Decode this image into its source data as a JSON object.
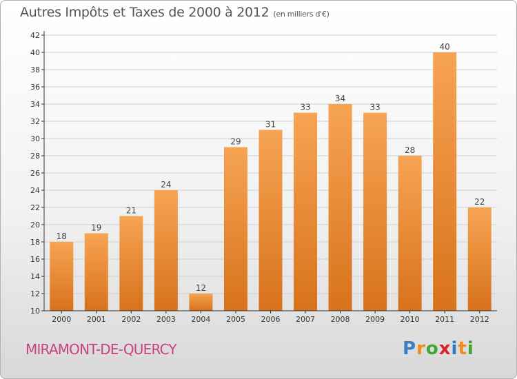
{
  "title": "Autres Impôts et Taxes de 2000 à 2012",
  "subtitle": "(en milliers d'€)",
  "commune": "MIRAMONT-DE-QUERCY",
  "logo": {
    "text": "Proxiti",
    "colors": [
      "#3b7ec4",
      "#f08a1d",
      "#3fa536",
      "#d9232e",
      "#2f7bbf",
      "#f08a1d",
      "#3fa536"
    ]
  },
  "colors": {
    "bar_light": "#f6a453",
    "bar_dark": "#d8721c",
    "grid": "#cfcfcf",
    "axis": "#333333"
  },
  "chart_data": {
    "type": "bar",
    "categories": [
      "2000",
      "2001",
      "2002",
      "2003",
      "2004",
      "2005",
      "2006",
      "2007",
      "2008",
      "2009",
      "2010",
      "2011",
      "2012"
    ],
    "values": [
      18,
      19,
      21,
      24,
      12,
      29,
      31,
      33,
      34,
      33,
      28,
      40,
      22
    ],
    "ylim": [
      10,
      42
    ],
    "yticks": [
      10,
      12,
      14,
      16,
      18,
      20,
      22,
      24,
      26,
      28,
      30,
      32,
      34,
      36,
      38,
      40,
      42
    ],
    "grid": true,
    "data_labels": true
  }
}
